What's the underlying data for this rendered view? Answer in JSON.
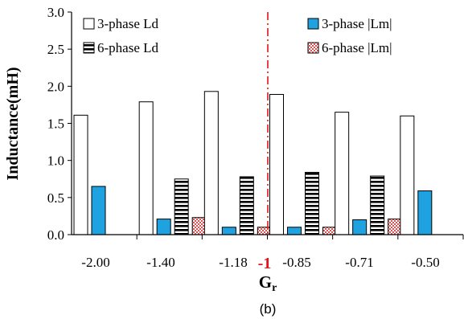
{
  "chart_data": {
    "type": "bar",
    "xlabel": "Gr",
    "xlabel_main": "G",
    "xlabel_sub": "r",
    "ylabel": "Inductance(mH)",
    "ylim": [
      0,
      3.0
    ],
    "yticks": [
      "0.0",
      "0.5",
      "1.0",
      "1.5",
      "2.0",
      "2.5",
      "3.0"
    ],
    "categories": [
      "-2.00",
      "-1.40",
      "-1.18",
      "-0.85",
      "-0.71",
      "-0.50"
    ],
    "marker_label": "-1",
    "caption": "(b)",
    "grid": false,
    "legend_position": "top",
    "series": [
      {
        "name": "3-phase Ld",
        "style": "white",
        "values": [
          1.61,
          1.79,
          1.93,
          1.89,
          1.65,
          1.6
        ]
      },
      {
        "name": "3-phase |Lm|",
        "style": "blue",
        "color": "#1fa3e0",
        "values": [
          0.65,
          0.21,
          0.1,
          0.1,
          0.2,
          0.59
        ]
      },
      {
        "name": "6-phase Ld",
        "style": "horizontal-stripes",
        "values": [
          null,
          0.75,
          0.78,
          0.84,
          0.79,
          null
        ]
      },
      {
        "name": "6-phase |Lm|",
        "style": "red-checker",
        "color": "#e05050",
        "values": [
          null,
          0.23,
          0.1,
          0.1,
          0.21,
          null
        ]
      }
    ]
  }
}
